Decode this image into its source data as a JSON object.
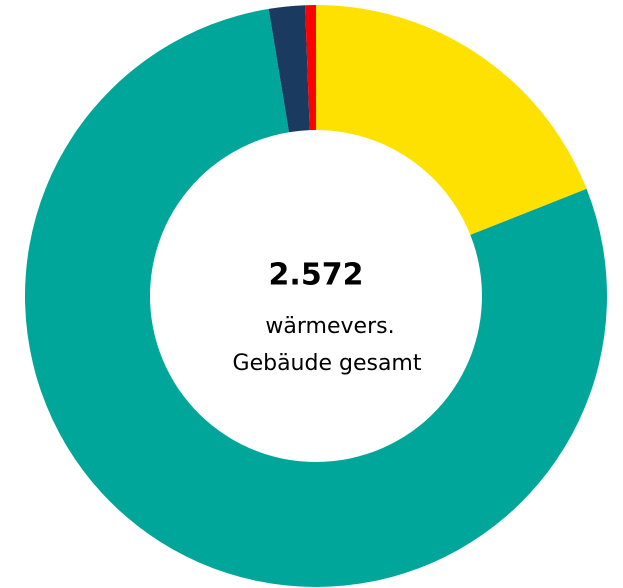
{
  "chart_data": {
    "type": "donut",
    "categories": [
      null,
      null,
      null,
      null
    ],
    "values": [
      19,
      78.4,
      2,
      0.6
    ],
    "colors": [
      "#ffe100",
      "#00a699",
      "#1a3a60",
      "#ff0000"
    ],
    "center_title": "2.572",
    "center_lines": [
      "wärmevers.",
      "Gebäude gesamt"
    ]
  }
}
